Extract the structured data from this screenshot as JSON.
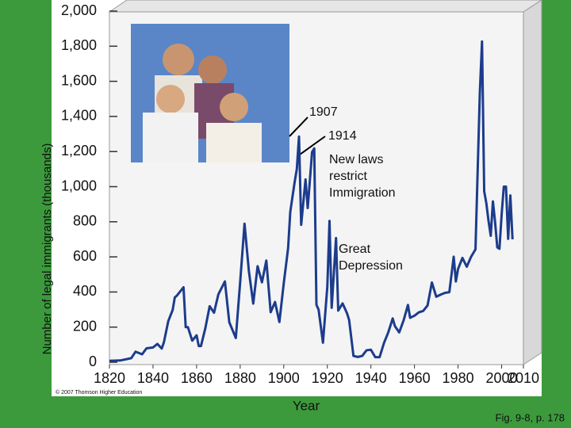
{
  "chart_data": {
    "type": "line",
    "y_label": "Number of legal immigrants (thousands)",
    "x_label": "Year",
    "credit": "© 2007 Thomson Higher Education",
    "caption": "Fig. 9-8, p. 178",
    "annotations": [
      {
        "lines": [
          "1907"
        ]
      },
      {
        "lines": [
          "1914"
        ]
      },
      {
        "lines": [
          "New laws",
          "restrict",
          "Immigration"
        ]
      },
      {
        "lines": [
          "Great",
          "Depression"
        ]
      }
    ],
    "xlim": [
      1820,
      2010
    ],
    "xticks": [
      1820,
      1840,
      1860,
      1880,
      1900,
      1920,
      1940,
      1960,
      1980,
      2000,
      2010
    ],
    "ylim": [
      0,
      2000
    ],
    "yticks": [
      0,
      200,
      400,
      600,
      800,
      {
        "value": 1000,
        "label": "1,000"
      },
      {
        "value": 1200,
        "label": "1,200"
      },
      {
        "value": 1400,
        "label": "1,400"
      },
      {
        "value": 1600,
        "label": "1,600"
      },
      {
        "value": 1800,
        "label": "1,800"
      },
      {
        "value": 2000,
        "label": "2,000"
      }
    ],
    "series": [
      {
        "name": "Legal immigrants",
        "color": "#1c3c8c",
        "x": [
          1820,
          1825,
          1830,
          1832,
          1835,
          1837,
          1840,
          1842,
          1844,
          1845,
          1847,
          1849,
          1850,
          1851,
          1854,
          1855,
          1856,
          1858,
          1860,
          1861,
          1862,
          1864,
          1866,
          1868,
          1870,
          1873,
          1875,
          1878,
          1880,
          1882,
          1884,
          1886,
          1888,
          1890,
          1892,
          1894,
          1896,
          1898,
          1900,
          1902,
          1903,
          1905,
          1906,
          1907,
          1908,
          1910,
          1911,
          1913,
          1914,
          1915,
          1916,
          1918,
          1920,
          1921,
          1922,
          1924,
          1925,
          1927,
          1929,
          1930,
          1932,
          1934,
          1936,
          1938,
          1940,
          1942,
          1944,
          1946,
          1948,
          1950,
          1951,
          1953,
          1955,
          1957,
          1958,
          1960,
          1962,
          1964,
          1966,
          1968,
          1970,
          1972,
          1974,
          1976,
          1978,
          1979,
          1980,
          1982,
          1984,
          1986,
          1988,
          1989,
          1990,
          1991,
          1992,
          1993,
          1994,
          1995,
          1996,
          1997,
          1998,
          1999,
          2000,
          2001,
          2002,
          2003,
          2004,
          2005
        ],
        "values": [
          8,
          10,
          23,
          60,
          45,
          79,
          84,
          104,
          78,
          114,
          234,
          297,
          369,
          380,
          427,
          200,
          200,
          123,
          153,
          92,
          92,
          193,
          319,
          282,
          387,
          460,
          228,
          138,
          457,
          789,
          519,
          334,
          547,
          455,
          579,
          285,
          343,
          229,
          449,
          649,
          857,
          1026,
          1100,
          1285,
          783,
          1041,
          878,
          1197,
          1218,
          327,
          299,
          111,
          430,
          805,
          310,
          707,
          294,
          335,
          280,
          241,
          36,
          30,
          36,
          68,
          71,
          29,
          29,
          109,
          171,
          249,
          206,
          170,
          238,
          326,
          253,
          265,
          284,
          292,
          323,
          454,
          373,
          385,
          395,
          399,
          601,
          460,
          531,
          594,
          544,
          601,
          643,
          1091,
          1536,
          1827,
          974,
          904,
          804,
          720,
          916,
          798,
          654,
          646,
          841,
          1000,
          1000,
          703,
          950,
          700
        ]
      }
    ]
  }
}
